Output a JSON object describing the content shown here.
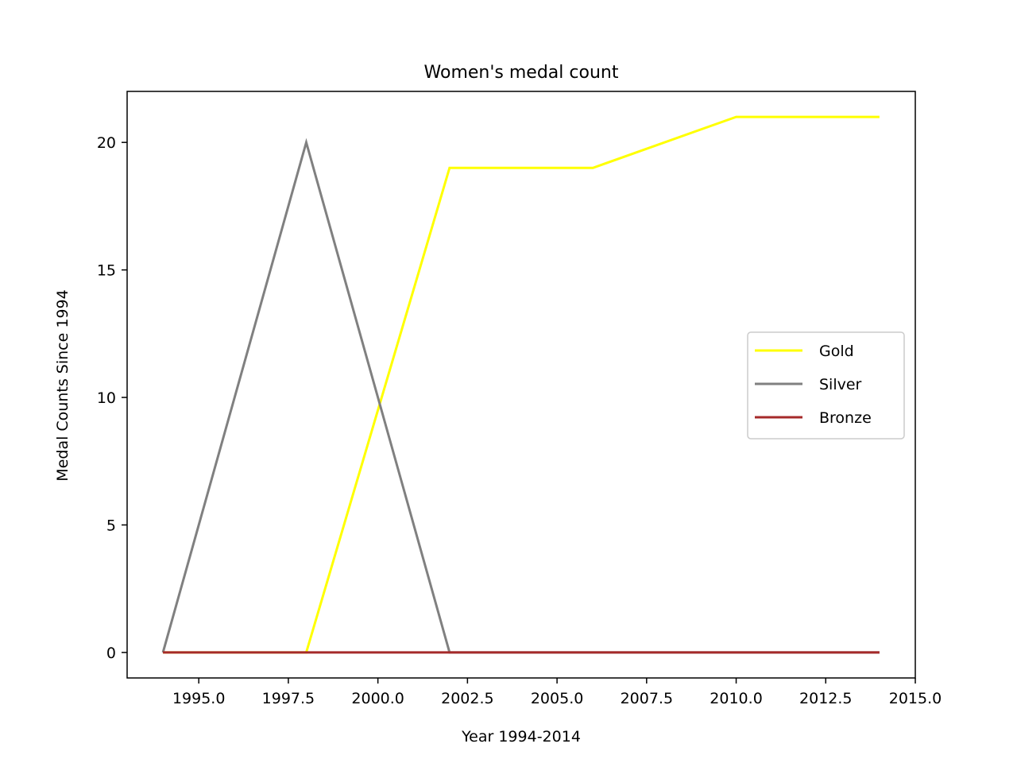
{
  "chart_data": {
    "type": "line",
    "title": "Women's medal count",
    "xlabel": "Year 1994-2014",
    "ylabel": "Medal Counts Since 1994",
    "x": [
      1994,
      1998,
      2002,
      2006,
      2010,
      2014
    ],
    "series": [
      {
        "name": "Gold",
        "color": "#ffff00",
        "values": [
          0,
          0,
          19,
          19,
          21,
          21
        ]
      },
      {
        "name": "Silver",
        "color": "#808080",
        "values": [
          0,
          20,
          0,
          0,
          0,
          0
        ]
      },
      {
        "name": "Bronze",
        "color": "#a52a2a",
        "values": [
          0,
          0,
          0,
          0,
          0,
          0
        ]
      }
    ],
    "xlim": [
      1993,
      2015
    ],
    "ylim": [
      -1,
      22
    ],
    "xticks": [
      1995,
      1997.5,
      2000,
      2002.5,
      2005,
      2007.5,
      2010,
      2012.5,
      2015
    ],
    "xtick_labels": [
      "1995.0",
      "1997.5",
      "2000.0",
      "2002.5",
      "2005.0",
      "2007.5",
      "2010.0",
      "2012.5",
      "2015.0"
    ],
    "yticks": [
      0,
      5,
      10,
      15,
      20
    ],
    "ytick_labels": [
      "0",
      "5",
      "10",
      "15",
      "20"
    ],
    "grid": false,
    "legend_position": "center-right"
  }
}
